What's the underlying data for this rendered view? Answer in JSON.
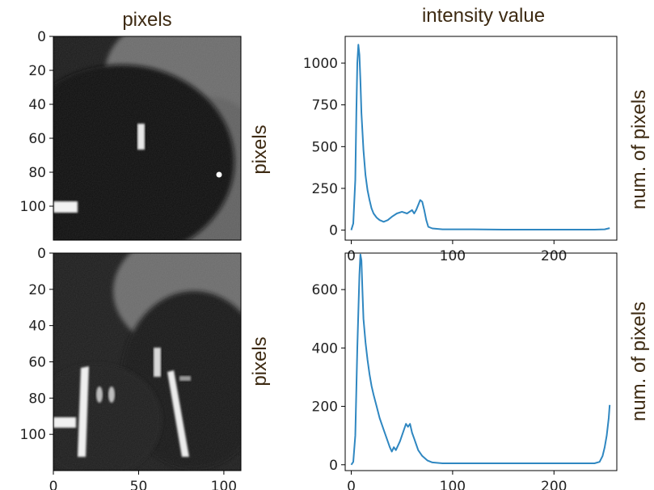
{
  "chart_data": [
    {
      "type": "image",
      "panel": "top-left",
      "title": "pixels",
      "ylabel": "pixels",
      "yticks": [
        "0",
        "20",
        "40",
        "60",
        "80",
        "100"
      ],
      "xticks": [],
      "extent_x": [
        0,
        110
      ],
      "extent_y": [
        0,
        120
      ]
    },
    {
      "type": "image",
      "panel": "bottom-left",
      "ylabel": "pixels",
      "yticks": [
        "0",
        "20",
        "40",
        "60",
        "80",
        "100"
      ],
      "xticks": [
        "0",
        "50",
        "100"
      ],
      "extent_x": [
        0,
        110
      ],
      "extent_y": [
        0,
        120
      ]
    },
    {
      "type": "line",
      "panel": "top-right",
      "title": "intensity value",
      "ylabel": "num. of pixels",
      "xlim": [
        -6,
        262
      ],
      "ylim": [
        -60,
        1160
      ],
      "xticks": [
        "0",
        "100",
        "200"
      ],
      "yticks": [
        "0",
        "250",
        "500",
        "750",
        "1000"
      ],
      "x": [
        0,
        2,
        4,
        5,
        6,
        7,
        8,
        9,
        10,
        12,
        14,
        16,
        18,
        20,
        22,
        25,
        28,
        32,
        36,
        40,
        45,
        50,
        55,
        60,
        62,
        64,
        66,
        68,
        70,
        72,
        74,
        76,
        80,
        90,
        100,
        120,
        150,
        200,
        240,
        250,
        255
      ],
      "values": [
        0,
        40,
        300,
        700,
        1000,
        1110,
        1050,
        900,
        700,
        480,
        330,
        240,
        180,
        130,
        100,
        75,
        60,
        50,
        60,
        80,
        100,
        110,
        100,
        120,
        100,
        120,
        150,
        180,
        170,
        120,
        60,
        20,
        10,
        5,
        5,
        5,
        3,
        3,
        3,
        5,
        12
      ]
    },
    {
      "type": "line",
      "panel": "bottom-right",
      "ylabel": "num. of pixels",
      "xlim": [
        -6,
        262
      ],
      "ylim": [
        -20,
        725
      ],
      "xticks": [
        "0",
        "100",
        "200"
      ],
      "yticks": [
        "0",
        "200",
        "400",
        "600"
      ],
      "x": [
        0,
        2,
        4,
        6,
        8,
        9,
        10,
        11,
        12,
        14,
        16,
        18,
        20,
        22,
        25,
        28,
        32,
        36,
        38,
        40,
        42,
        44,
        46,
        48,
        50,
        52,
        54,
        56,
        58,
        60,
        62,
        64,
        66,
        70,
        75,
        80,
        90,
        100,
        120,
        150,
        200,
        240,
        245,
        248,
        250,
        252,
        254,
        255
      ],
      "values": [
        0,
        10,
        100,
        400,
        650,
        720,
        700,
        600,
        500,
        420,
        360,
        310,
        270,
        240,
        200,
        160,
        120,
        80,
        60,
        45,
        60,
        50,
        65,
        80,
        100,
        120,
        140,
        130,
        140,
        110,
        90,
        70,
        50,
        30,
        15,
        8,
        5,
        5,
        5,
        5,
        5,
        5,
        10,
        30,
        60,
        100,
        160,
        205
      ]
    }
  ],
  "colors": {
    "line": "#2f87c1",
    "text": "#3d2a12",
    "axis": "#000000"
  }
}
